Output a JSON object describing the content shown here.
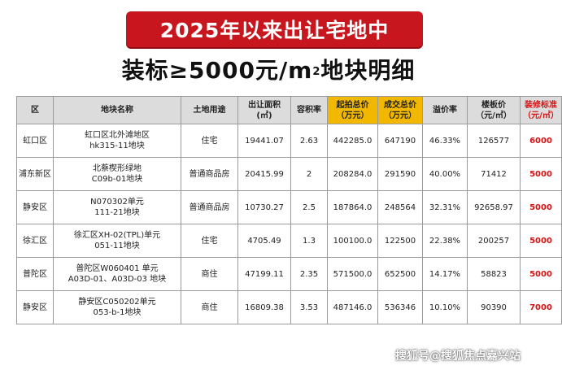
{
  "banner_title": "2025年以来出让宅地中",
  "subtitle": {
    "prefix": "装标≥5000元/m",
    "sup": "2",
    "suffix": "地块明细"
  },
  "table": {
    "headers": [
      {
        "line1": "区",
        "line2": ""
      },
      {
        "line1": "地块名称",
        "line2": ""
      },
      {
        "line1": "土地用途",
        "line2": ""
      },
      {
        "line1": "出让面积",
        "line2": "(㎡)"
      },
      {
        "line1": "容积率",
        "line2": ""
      },
      {
        "line1": "起拍总价",
        "line2": "（万元）"
      },
      {
        "line1": "成交总价",
        "line2": "（万元）"
      },
      {
        "line1": "溢价率",
        "line2": ""
      },
      {
        "line1": "楼板价",
        "line2": "（元/㎡）"
      },
      {
        "line1": "装修标准",
        "line2": "（元/㎡）"
      }
    ],
    "rows": [
      {
        "district": "虹口区",
        "name_l1": "虹口区北外滩地区",
        "name_l2": "hk315-11地块",
        "use": "住宅",
        "area": "19441.07",
        "far": "2.63",
        "start": "442285.0",
        "deal": "647190",
        "premium": "46.33%",
        "floor": "126577",
        "deco": "6000"
      },
      {
        "district": "浦东新区",
        "name_l1": "北蔡楔形绿地",
        "name_l2": "C09b-01地块",
        "use": "普通商品房",
        "area": "20415.99",
        "far": "2",
        "start": "208284.0",
        "deal": "291590",
        "premium": "40.00%",
        "floor": "71412",
        "deco": "5000"
      },
      {
        "district": "静安区",
        "name_l1": "N070302单元",
        "name_l2": "111-21地块",
        "use": "普通商品房",
        "area": "10730.27",
        "far": "2.5",
        "start": "187864.0",
        "deal": "248564",
        "premium": "32.31%",
        "floor": "92658.97",
        "deco": "5000"
      },
      {
        "district": "徐汇区",
        "name_l1": "徐汇区XH-02(TPL)单元",
        "name_l2": "051-11地块",
        "use": "住宅",
        "area": "4705.49",
        "far": "1.3",
        "start": "100100.0",
        "deal": "122500",
        "premium": "22.38%",
        "floor": "200257",
        "deco": "5000"
      },
      {
        "district": "普陀区",
        "name_l1": "普陀区W060401 单元",
        "name_l2": "A03D-01、A03D-03 地块",
        "use": "商住",
        "area": "47199.11",
        "far": "2.35",
        "start": "571500.0",
        "deal": "652500",
        "premium": "14.17%",
        "floor": "58823",
        "deco": "5000"
      },
      {
        "district": "静安区",
        "name_l1": "静安区C050202单元",
        "name_l2": "053-b-1地块",
        "use": "商住",
        "area": "16809.38",
        "far": "3.53",
        "start": "487146.0",
        "deal": "536346",
        "premium": "10.10%",
        "floor": "90390",
        "deco": "7000"
      }
    ]
  },
  "watermark": "搜狐号@搜狐焦点嘉兴站",
  "colors": {
    "banner_red": "#c7161d",
    "header_gold": "#f2b800",
    "header_gray": "#dcdcdc",
    "decoration_red": "#d41414"
  }
}
